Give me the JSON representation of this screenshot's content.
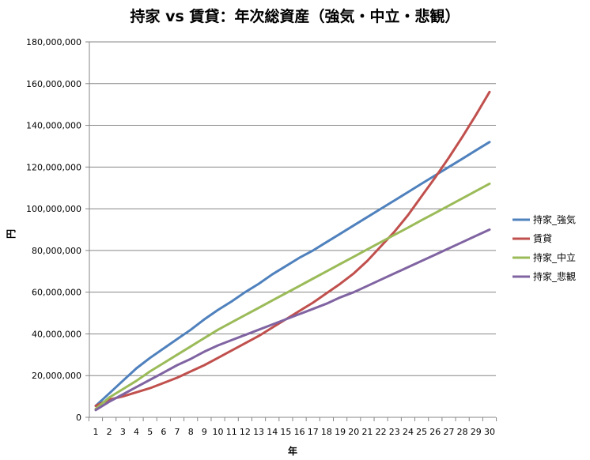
{
  "chart_data": {
    "type": "line",
    "title": "持家 vs 賃貸：年次総資産（強気・中立・悲観）",
    "xlabel": "年",
    "ylabel": "円",
    "ylim": [
      0,
      180000000
    ],
    "yticks": [
      0,
      20000000,
      40000000,
      60000000,
      80000000,
      100000000,
      120000000,
      140000000,
      160000000,
      180000000
    ],
    "ytick_labels": [
      "0",
      "20,000,000",
      "40,000,000",
      "60,000,000",
      "80,000,000",
      "100,000,000",
      "120,000,000",
      "140,000,000",
      "160,000,000",
      "180,000,000"
    ],
    "x": [
      1,
      2,
      3,
      4,
      5,
      6,
      7,
      8,
      9,
      10,
      11,
      12,
      13,
      14,
      15,
      16,
      17,
      18,
      19,
      20,
      21,
      22,
      23,
      24,
      25,
      26,
      27,
      28,
      29,
      30
    ],
    "grid": "horizontal",
    "legend_position": "right",
    "series": [
      {
        "name": "持家_強気",
        "color": "#4F81BD",
        "values": [
          5500000,
          11500000,
          17500000,
          23500000,
          28500000,
          33000000,
          37500000,
          42000000,
          47000000,
          51500000,
          55500000,
          60000000,
          64000000,
          68500000,
          72500000,
          76500000,
          80000000,
          84000000,
          88000000,
          92000000,
          96000000,
          100000000,
          104000000,
          108000000,
          112000000,
          116000000,
          120000000,
          124000000,
          128000000,
          132000000
        ]
      },
      {
        "name": "賃貸",
        "color": "#C0504D",
        "values": [
          5500000,
          8500000,
          10000000,
          12000000,
          14000000,
          16500000,
          19000000,
          22000000,
          25000000,
          28500000,
          32000000,
          35500000,
          39000000,
          43000000,
          47000000,
          51000000,
          55000000,
          59500000,
          64000000,
          69000000,
          75000000,
          82000000,
          89000000,
          97000000,
          106000000,
          115000000,
          124500000,
          134500000,
          145000000,
          156000000
        ]
      },
      {
        "name": "持家_中立",
        "color": "#9BBB59",
        "values": [
          4000000,
          9500000,
          13500000,
          17500000,
          22000000,
          26000000,
          30000000,
          34000000,
          38000000,
          42000000,
          45500000,
          49000000,
          52500000,
          56000000,
          59500000,
          63000000,
          66500000,
          70000000,
          73500000,
          77000000,
          80500000,
          84000000,
          87500000,
          91000000,
          94500000,
          98000000,
          101500000,
          105000000,
          108500000,
          112000000
        ]
      },
      {
        "name": "持家_悲観",
        "color": "#8064A2",
        "values": [
          3500000,
          7500000,
          11000000,
          14500000,
          18000000,
          21500000,
          25000000,
          28000000,
          31500000,
          34500000,
          37000000,
          39500000,
          42000000,
          44500000,
          47000000,
          49500000,
          52000000,
          54500000,
          57500000,
          60000000,
          63000000,
          66000000,
          69000000,
          72000000,
          75000000,
          78000000,
          81000000,
          84000000,
          87000000,
          90000000
        ]
      }
    ]
  }
}
